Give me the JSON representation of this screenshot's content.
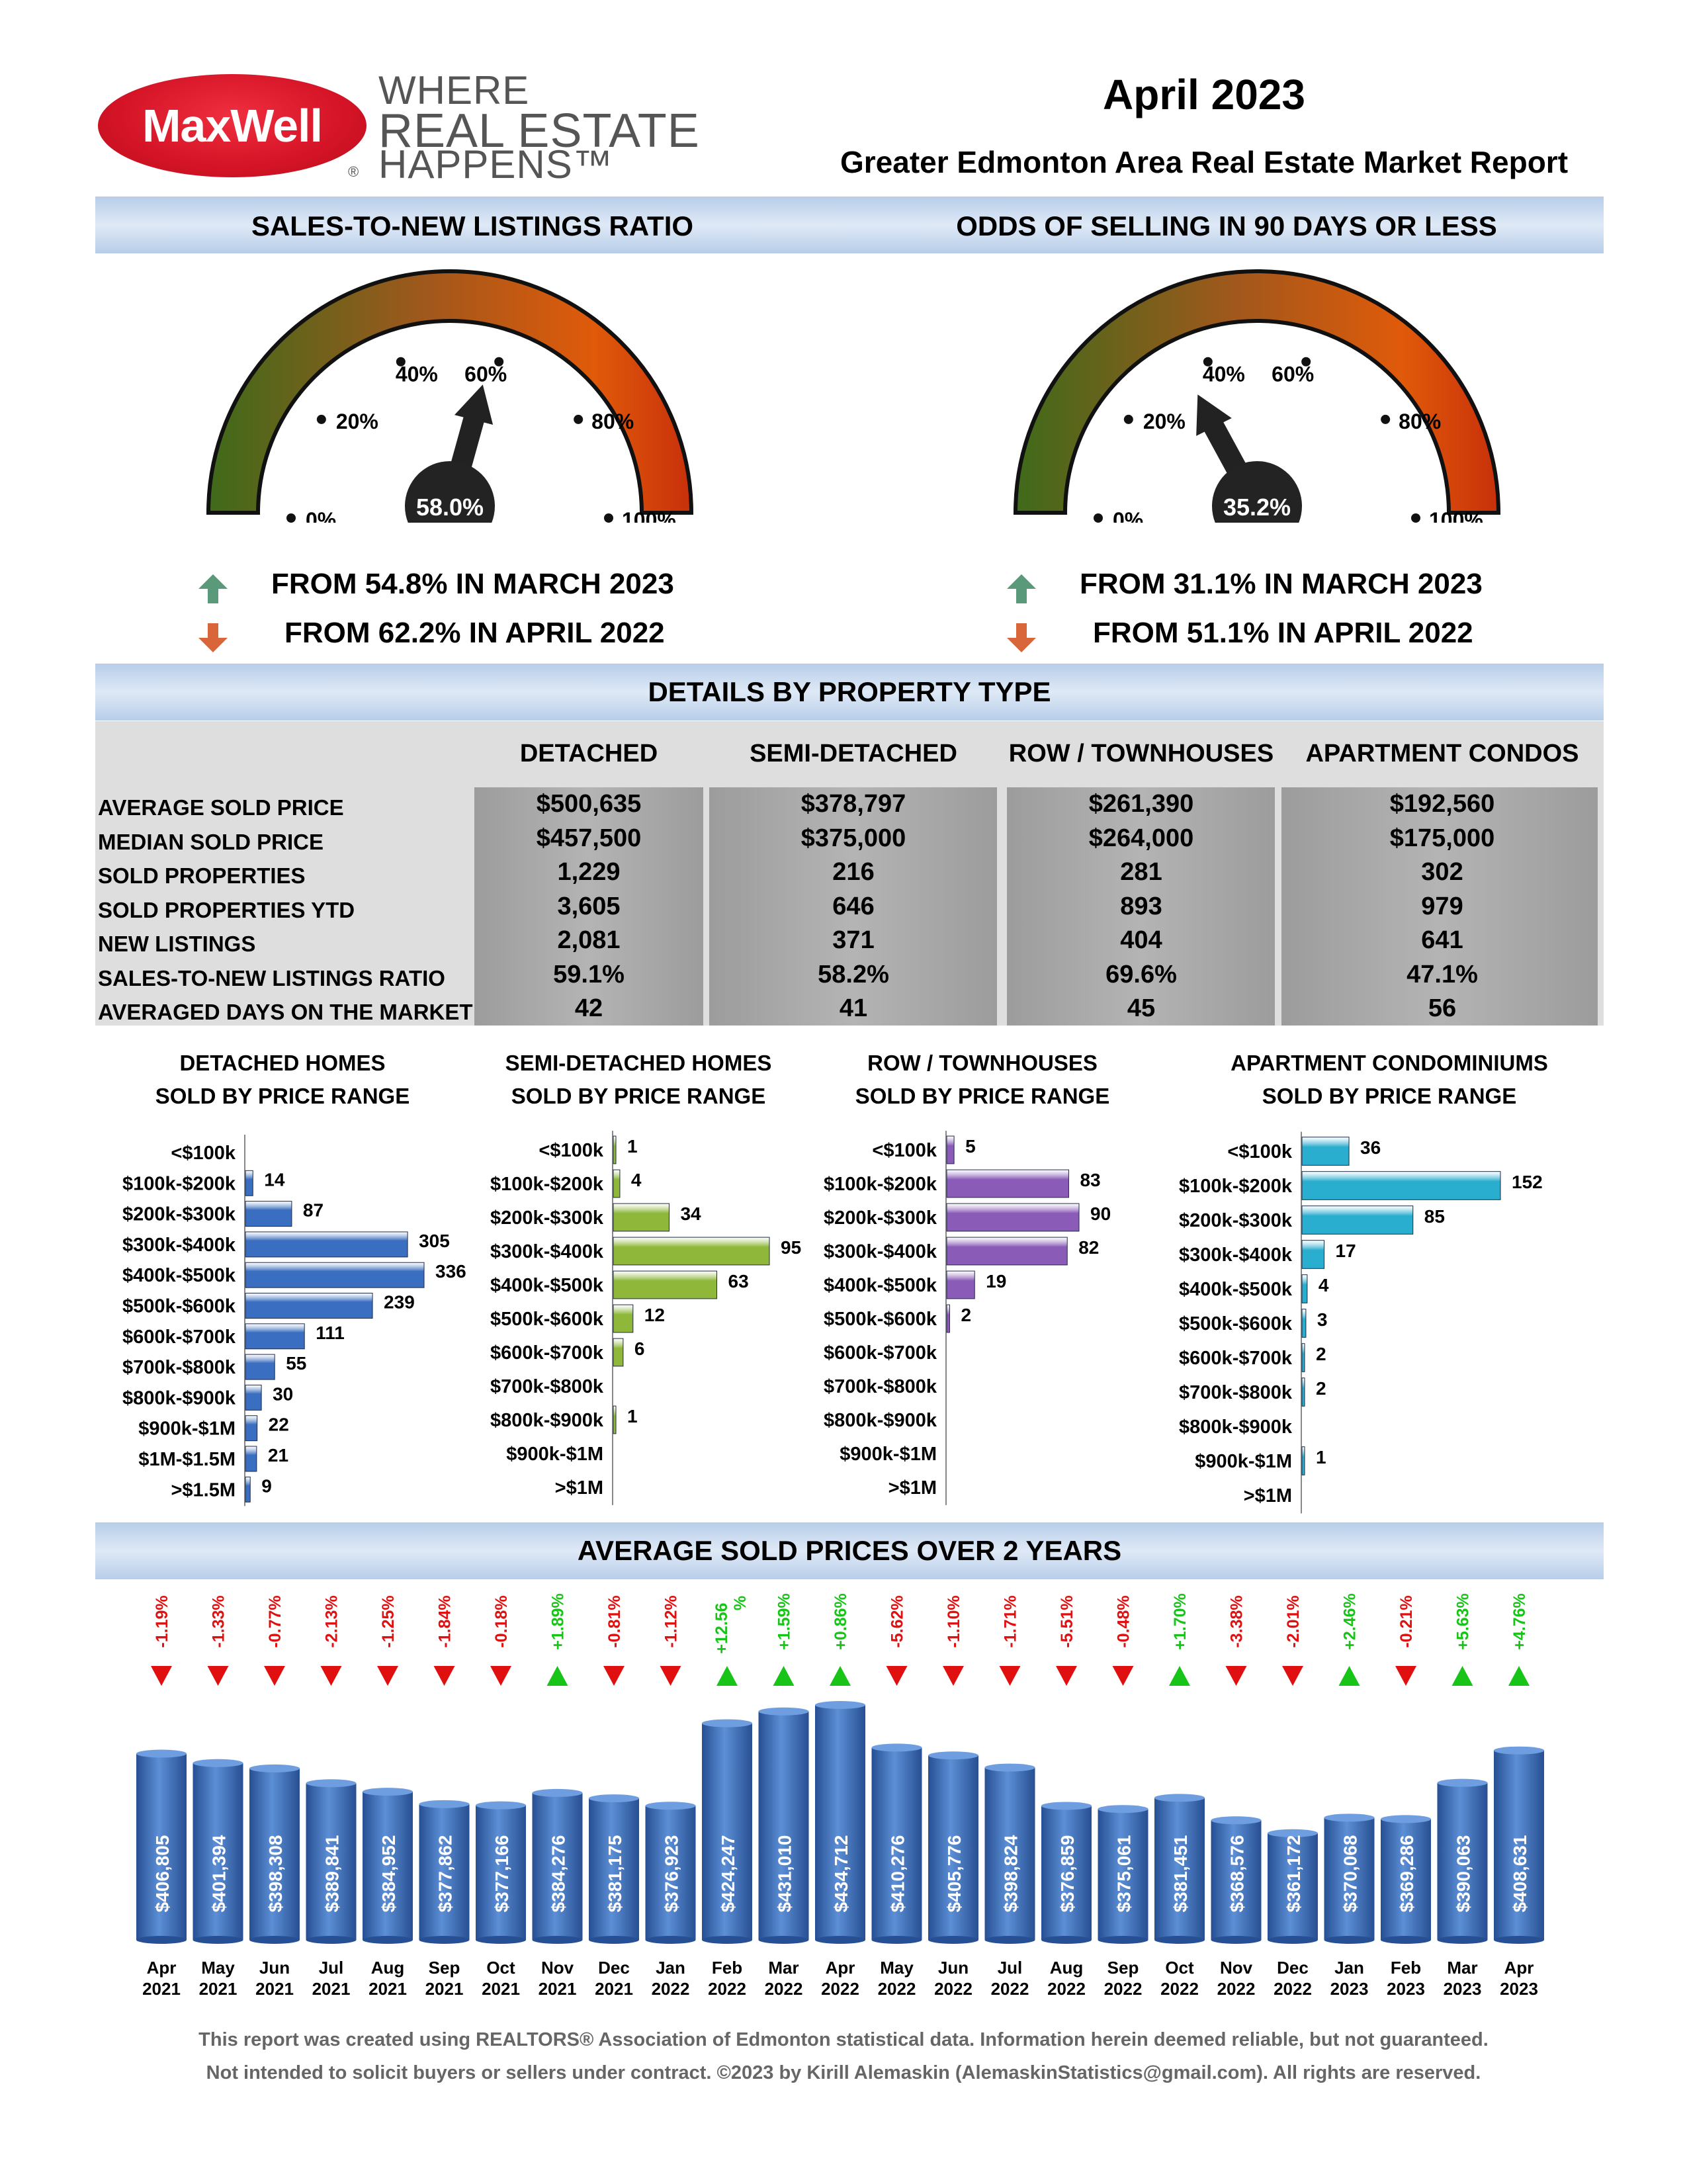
{
  "brand": {
    "logo_text": "MaxWell",
    "logo_reg": "®",
    "tagline_1": "WHERE",
    "tagline_2": "REAL ESTATE",
    "tagline_3": "HAPPENS™"
  },
  "report": {
    "month": "April 2023",
    "title": "Greater Edmonton Area Real Estate Market Report"
  },
  "gauges": [
    {
      "title": "SALES-TO-NEW LISTINGS RATIO",
      "value": 58.0,
      "value_label": "58.0%",
      "ticks": [
        "0%",
        "20%",
        "40%",
        "60%",
        "80%",
        "100%"
      ],
      "compare_1": {
        "direction": "up",
        "text": "FROM 54.8% IN MARCH 2023"
      },
      "compare_2": {
        "direction": "down",
        "text": "FROM 62.2% IN APRIL 2022"
      }
    },
    {
      "title": "ODDS OF SELLING IN 90 DAYS OR LESS",
      "value": 35.2,
      "value_label": "35.2%",
      "ticks": [
        "0%",
        "20%",
        "40%",
        "60%",
        "80%",
        "100%"
      ],
      "compare_1": {
        "direction": "up",
        "text": "FROM 31.1% IN MARCH 2023"
      },
      "compare_2": {
        "direction": "down",
        "text": "FROM 51.1% IN APRIL 2022"
      }
    }
  ],
  "colors": {
    "up_arrow": "#5a9a7a",
    "down_arrow": "#d9663a",
    "gauge_low": "#3f6a1a",
    "gauge_high": "#e05a0a",
    "detached": "#3a6ec0",
    "semi": "#8fb83a",
    "row": "#8a5cb8",
    "apt": "#2aaed0",
    "avg_bar": "#3a6ab8",
    "pct_up": "#18c418",
    "pct_down": "#e01010"
  },
  "property": {
    "section_title": "DETAILS BY PROPERTY TYPE",
    "columns": [
      "DETACHED",
      "SEMI-DETACHED",
      "ROW / TOWNHOUSES",
      "APARTMENT CONDOS"
    ],
    "rows": [
      {
        "label": "AVERAGE SOLD PRICE",
        "values": [
          "$500,635",
          "$378,797",
          "$261,390",
          "$192,560"
        ]
      },
      {
        "label": "MEDIAN SOLD PRICE",
        "values": [
          "$457,500",
          "$375,000",
          "$264,000",
          "$175,000"
        ]
      },
      {
        "label": "SOLD PROPERTIES",
        "values": [
          "1,229",
          "216",
          "281",
          "302"
        ]
      },
      {
        "label": "SOLD PROPERTIES YTD",
        "values": [
          "3,605",
          "646",
          "893",
          "979"
        ]
      },
      {
        "label": "NEW LISTINGS",
        "values": [
          "2,081",
          "371",
          "404",
          "641"
        ]
      },
      {
        "label": "SALES-TO-NEW LISTINGS RATIO",
        "values": [
          "59.1%",
          "58.2%",
          "69.6%",
          "47.1%"
        ]
      },
      {
        "label": "AVERAGED DAYS ON THE MARKET",
        "values": [
          "42",
          "41",
          "45",
          "56"
        ]
      }
    ]
  },
  "chart_data": [
    {
      "type": "bar",
      "orientation": "horizontal",
      "title": "DETACHED HOMES",
      "subtitle": "SOLD BY PRICE RANGE",
      "categories": [
        "<$100k",
        "$100k-$200k",
        "$200k-$300k",
        "$300k-$400k",
        "$400k-$500k",
        "$500k-$600k",
        "$600k-$700k",
        "$700k-$800k",
        "$800k-$900k",
        "$900k-$1M",
        "$1M-$1.5M",
        ">$1.5M"
      ],
      "values": [
        null,
        14,
        87,
        305,
        336,
        239,
        111,
        55,
        30,
        22,
        21,
        9
      ]
    },
    {
      "type": "bar",
      "orientation": "horizontal",
      "title": "SEMI-DETACHED HOMES",
      "subtitle": "SOLD BY PRICE RANGE",
      "categories": [
        "<$100k",
        "$100k-$200k",
        "$200k-$300k",
        "$300k-$400k",
        "$400k-$500k",
        "$500k-$600k",
        "$600k-$700k",
        "$700k-$800k",
        "$800k-$900k",
        "$900k-$1M",
        ">$1M"
      ],
      "values": [
        1,
        4,
        34,
        95,
        63,
        12,
        6,
        null,
        1,
        null,
        null
      ]
    },
    {
      "type": "bar",
      "orientation": "horizontal",
      "title": "ROW / TOWNHOUSES",
      "subtitle": "SOLD BY PRICE RANGE",
      "categories": [
        "<$100k",
        "$100k-$200k",
        "$200k-$300k",
        "$300k-$400k",
        "$400k-$500k",
        "$500k-$600k",
        "$600k-$700k",
        "$700k-$800k",
        "$800k-$900k",
        "$900k-$1M",
        ">$1M"
      ],
      "values": [
        5,
        83,
        90,
        82,
        19,
        2,
        null,
        null,
        null,
        null,
        null
      ]
    },
    {
      "type": "bar",
      "orientation": "horizontal",
      "title": "APARTMENT CONDOMINIUMS",
      "subtitle": "SOLD BY PRICE RANGE",
      "categories": [
        "<$100k",
        "$100k-$200k",
        "$200k-$300k",
        "$300k-$400k",
        "$400k-$500k",
        "$500k-$600k",
        "$600k-$700k",
        "$700k-$800k",
        "$800k-$900k",
        "$900k-$1M",
        ">$1M"
      ],
      "values": [
        36,
        152,
        85,
        17,
        4,
        3,
        2,
        2,
        null,
        1,
        null
      ]
    },
    {
      "type": "bar",
      "title": "AVERAGE SOLD PRICES OVER 2 YEARS",
      "categories": [
        [
          "Apr",
          "2021"
        ],
        [
          "May",
          "2021"
        ],
        [
          "Jun",
          "2021"
        ],
        [
          "Jul",
          "2021"
        ],
        [
          "Aug",
          "2021"
        ],
        [
          "Sep",
          "2021"
        ],
        [
          "Oct",
          "2021"
        ],
        [
          "Nov",
          "2021"
        ],
        [
          "Dec",
          "2021"
        ],
        [
          "Jan",
          "2022"
        ],
        [
          "Feb",
          "2022"
        ],
        [
          "Mar",
          "2022"
        ],
        [
          "Apr",
          "2022"
        ],
        [
          "May",
          "2022"
        ],
        [
          "Jun",
          "2022"
        ],
        [
          "Jul",
          "2022"
        ],
        [
          "Aug",
          "2022"
        ],
        [
          "Sep",
          "2022"
        ],
        [
          "Oct",
          "2022"
        ],
        [
          "Nov",
          "2022"
        ],
        [
          "Dec",
          "2022"
        ],
        [
          "Jan",
          "2023"
        ],
        [
          "Feb",
          "2023"
        ],
        [
          "Mar",
          "2023"
        ],
        [
          "Apr",
          "2023"
        ]
      ],
      "values": [
        406805,
        401394,
        398308,
        389841,
        384952,
        377862,
        377166,
        384276,
        381175,
        376923,
        424247,
        431010,
        434712,
        410276,
        405776,
        398824,
        376859,
        375061,
        381451,
        368576,
        361172,
        370068,
        369286,
        390063,
        408631
      ],
      "value_labels": [
        "$406,805",
        "$401,394",
        "$398,308",
        "$389,841",
        "$384,952",
        "$377,862",
        "$377,166",
        "$384,276",
        "$381,175",
        "$376,923",
        "$424,247",
        "$431,010",
        "$434,712",
        "$410,276",
        "$405,776",
        "$398,824",
        "$376,859",
        "$375,061",
        "$381,451",
        "$368,576",
        "$361,172",
        "$370,068",
        "$369,286",
        "$390,063",
        "$408,631"
      ],
      "changes": [
        "-1.19%",
        "-1.33%",
        "-0.77%",
        "-2.13%",
        "-1.25%",
        "-1.84%",
        "-0.18%",
        "+1.89%",
        "-0.81%",
        "-1.12%",
        "+12.56%",
        "+1.59%",
        "+0.86%",
        "-5.62%",
        "-1.10%",
        "-1.71%",
        "-5.51%",
        "-0.48%",
        "+1.70%",
        "-3.38%",
        "-2.01%",
        "+2.46%",
        "-0.21%",
        "+5.63%",
        "+4.76%"
      ]
    }
  ],
  "footer": {
    "line1": "This report was created using REALTORS® Association of Edmonton statistical data. Information herein deemed reliable, but not guaranteed.",
    "line2": "Not intended to solicit buyers or sellers under contract. ©2023 by Kirill Alemaskin (AlemaskinStatistics@gmail.com). All rights are reserved."
  }
}
